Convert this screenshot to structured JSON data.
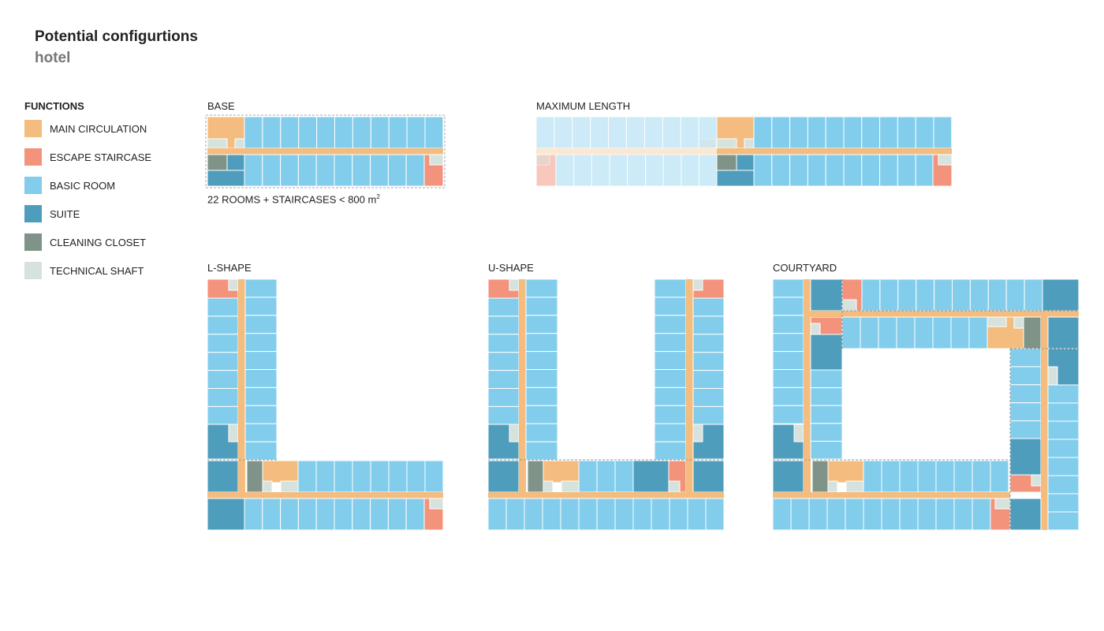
{
  "header": {
    "title": "Potential configurtions",
    "subtitle": "hotel"
  },
  "legend": {
    "title": "FUNCTIONS",
    "items": [
      {
        "label": "MAIN CIRCULATION",
        "color": "#f4bd7f"
      },
      {
        "label": "ESCAPE STAIRCASE",
        "color": "#f4937c"
      },
      {
        "label": "BASIC ROOM",
        "color": "#82cdec"
      },
      {
        "label": "SUITE",
        "color": "#4f9dbc"
      },
      {
        "label": "CLEANING CLOSET",
        "color": "#7f9388"
      },
      {
        "label": "TECHNICAL SHAFT",
        "color": "#d6e2dd"
      }
    ]
  },
  "configurations": {
    "base": {
      "label": "BASE",
      "caption_main": "22 ROOMS + STAIRCASES < 800 m",
      "caption_sup": "2"
    },
    "maximum_length": {
      "label": "MAXIMUM LENGTH"
    },
    "l_shape": {
      "label": "L-SHAPE"
    },
    "u_shape": {
      "label": "U-SHAPE"
    },
    "courtyard": {
      "label": "COURTYARD"
    }
  }
}
